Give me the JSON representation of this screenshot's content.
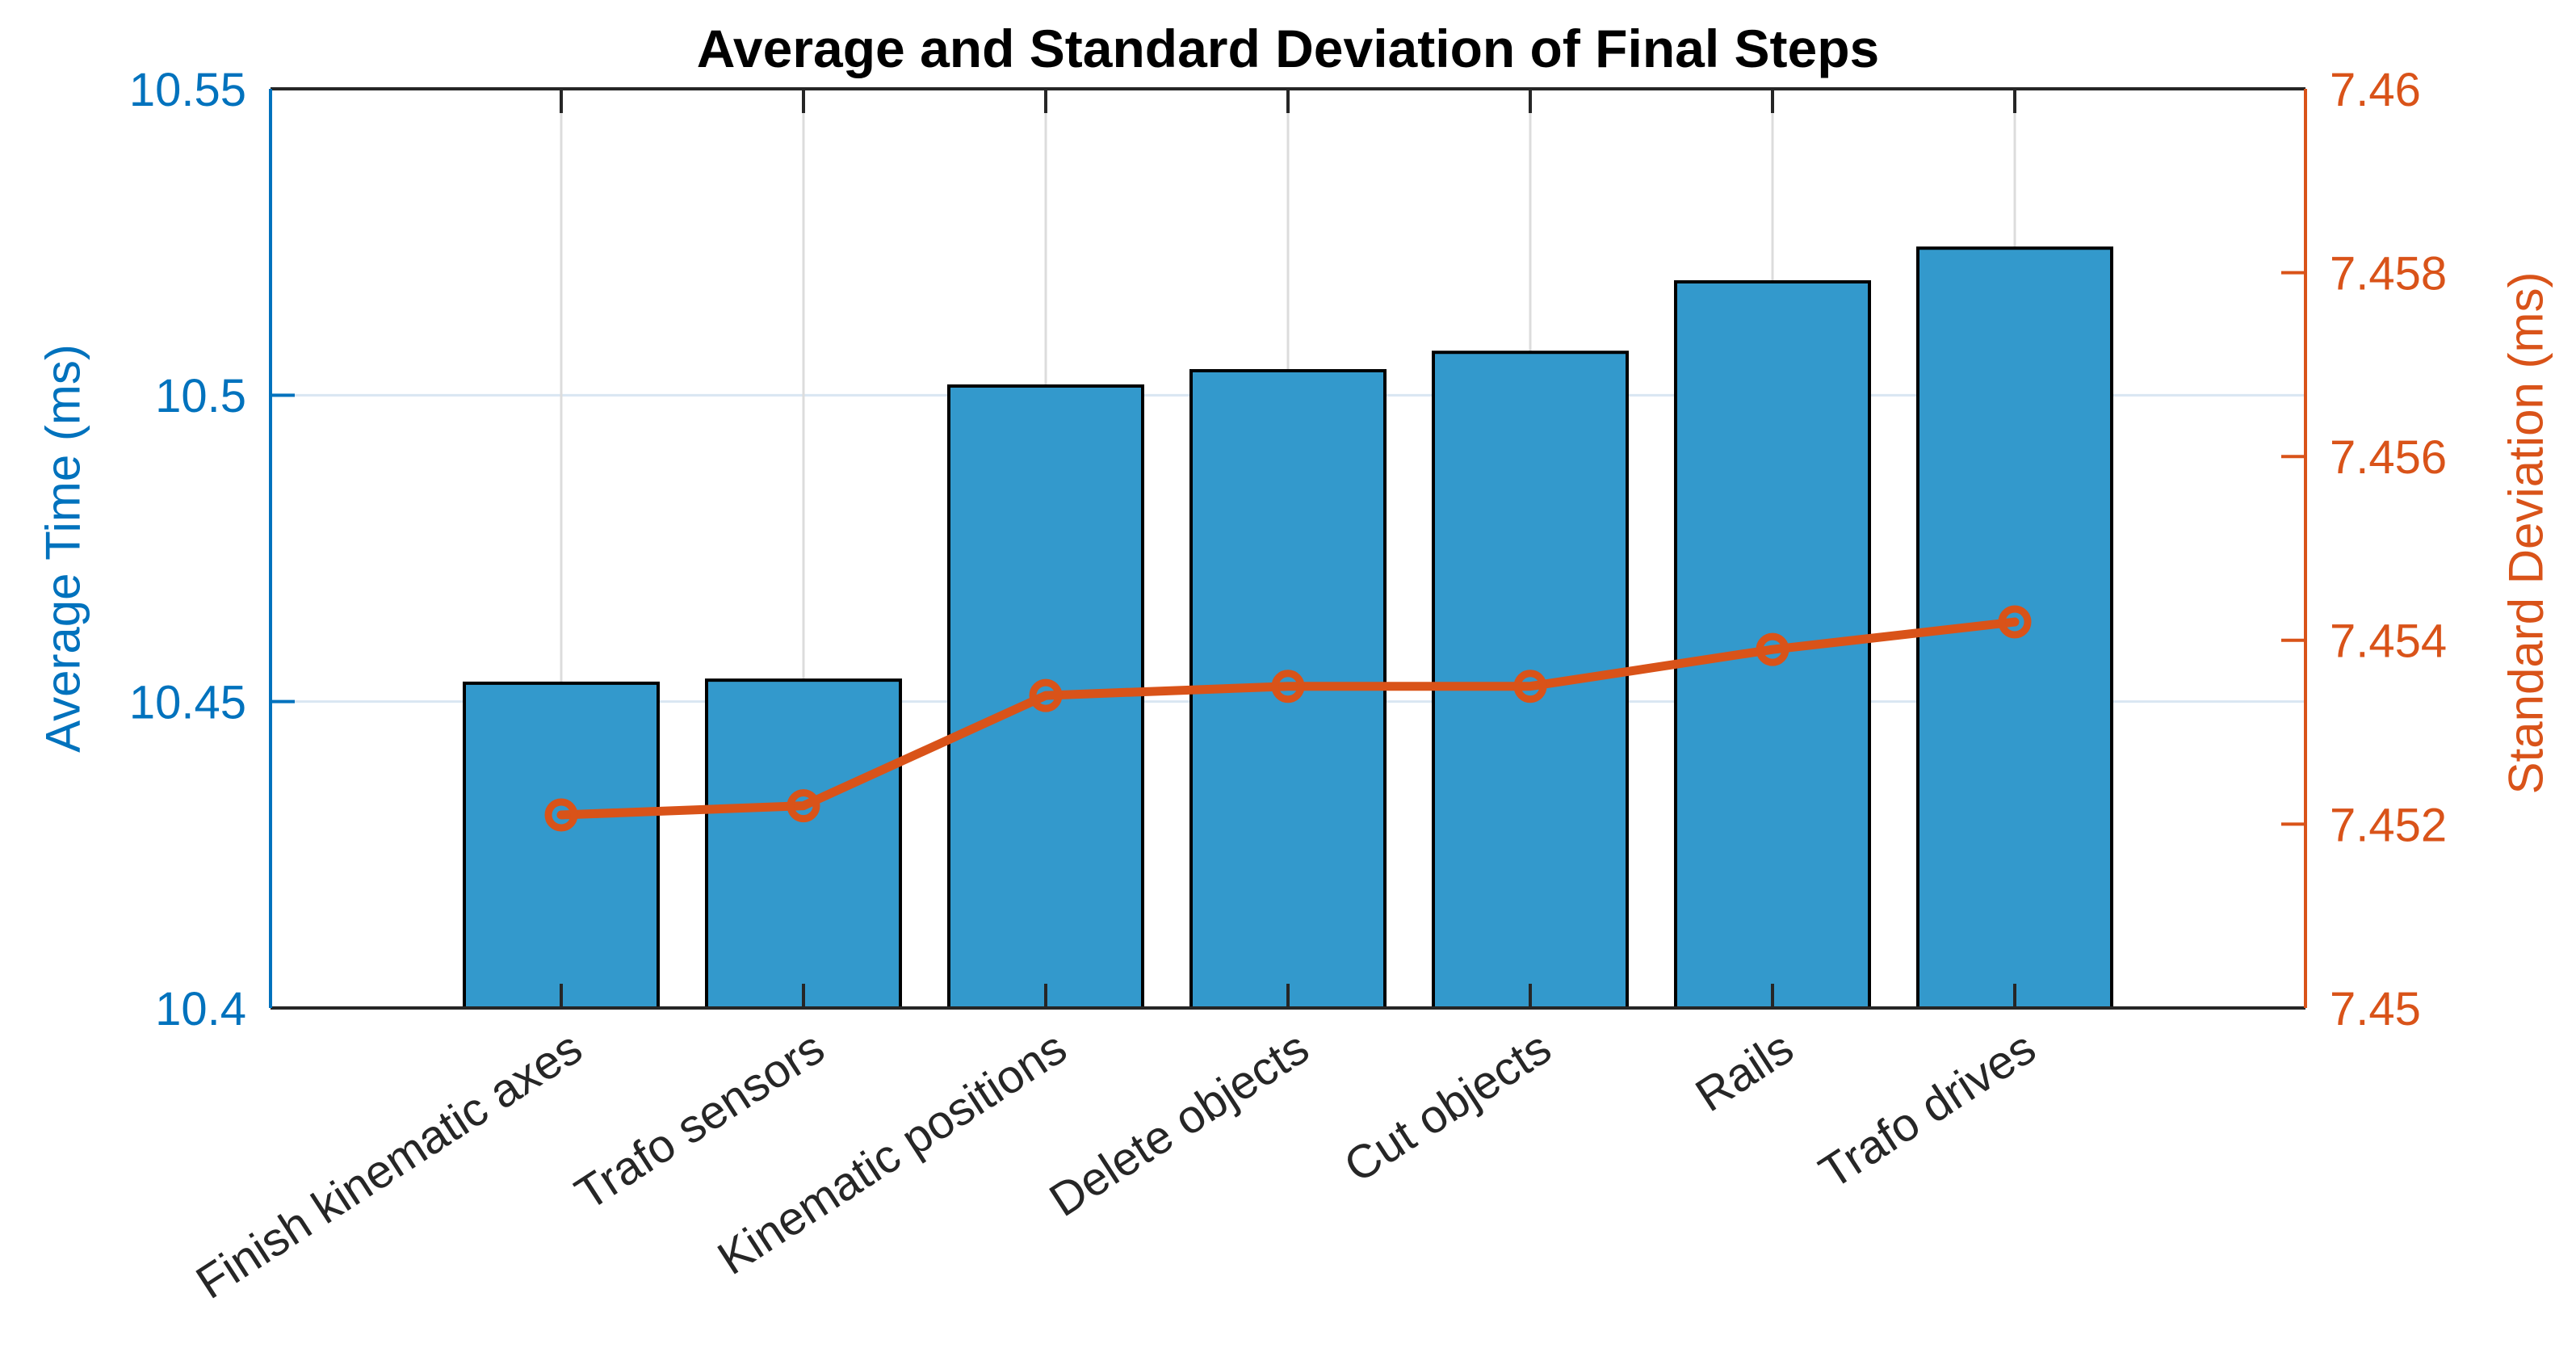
{
  "title": "Average and Standard Deviation of Final Steps",
  "left_axis": {
    "label": "Average Time (ms)",
    "color": "#0072BD",
    "min": 10.4,
    "max": 10.55,
    "ticks": [
      10.4,
      10.45,
      10.5,
      10.55
    ],
    "tick_labels": [
      "10.4",
      "10.45",
      "10.5",
      "10.55"
    ]
  },
  "right_axis": {
    "label": "Standard Deviation (ms)",
    "color": "#D95319",
    "min": 7.45,
    "max": 7.46,
    "ticks": [
      7.45,
      7.452,
      7.454,
      7.456,
      7.458,
      7.46
    ],
    "tick_labels": [
      "7.45",
      "7.452",
      "7.454",
      "7.456",
      "7.458",
      "7.46"
    ]
  },
  "chart_data": {
    "type": "bar",
    "subtype": "bar-and-line-dual-axis",
    "title": "Average and Standard Deviation of Final Steps",
    "categories": [
      "Finish kinematic axes",
      "Trafo sensors",
      "Kinematic positions",
      "Delete objects",
      "Cut objects",
      "Rails",
      "Trafo drives"
    ],
    "series": [
      {
        "name": "Average Time (ms)",
        "type": "bar",
        "axis": "left",
        "color": "#3399CC",
        "edge_color": "#000000",
        "values": [
          10.453,
          10.4535,
          10.5015,
          10.504,
          10.507,
          10.5185,
          10.524
        ]
      },
      {
        "name": "Standard Deviation (ms)",
        "type": "line",
        "axis": "right",
        "color": "#D95319",
        "marker": "open-circle",
        "values": [
          7.4521,
          7.4522,
          7.4534,
          7.4535,
          7.4535,
          7.4539,
          7.4542
        ]
      }
    ],
    "ylim_left": [
      10.4,
      10.55
    ],
    "ylim_right": [
      7.45,
      7.46
    ],
    "grid": true,
    "grid_h_color": "#D9E6F2",
    "grid_v_color": "#DCDCDC",
    "box_color": "#262626",
    "background": "#FFFFFF",
    "legend": "none",
    "x_tick_label_rotation_deg": -33
  }
}
